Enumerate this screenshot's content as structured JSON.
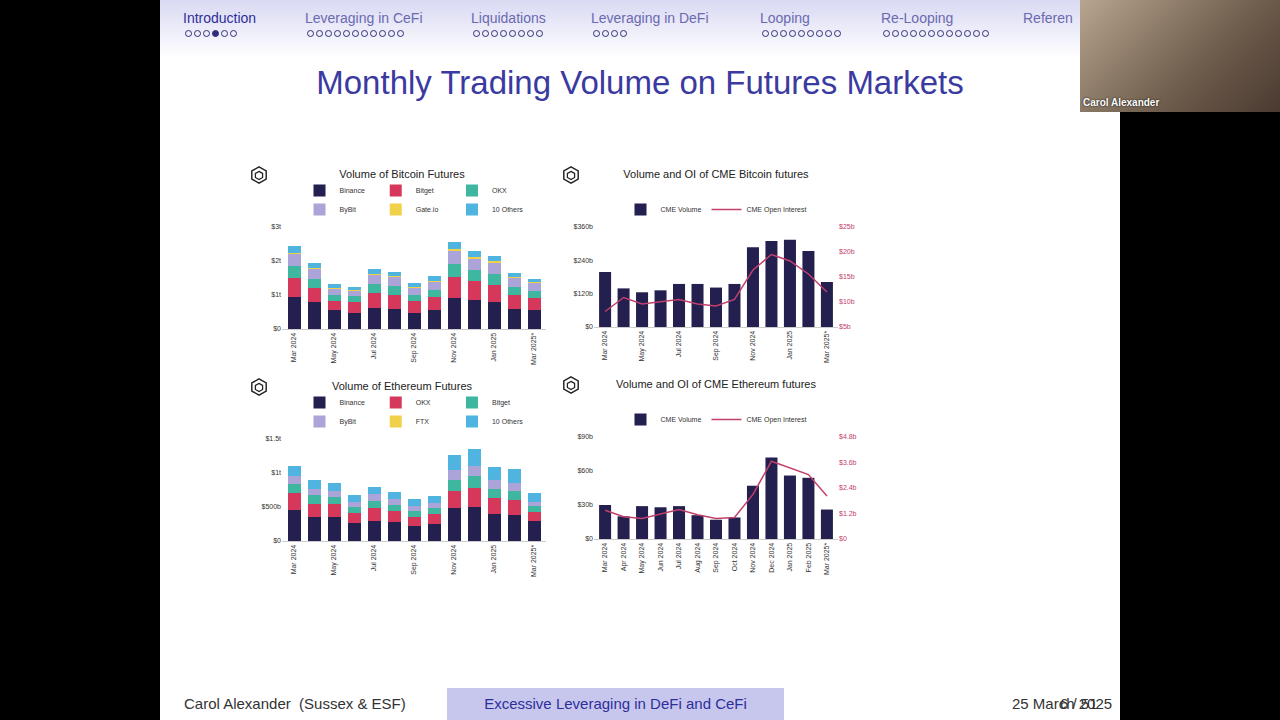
{
  "slide": {
    "title": "Monthly Trading Volume on Futures Markets",
    "nav": [
      {
        "label": "Introduction",
        "dots": 6,
        "current": 4
      },
      {
        "label": "Leveraging in CeFi",
        "dots": 11
      },
      {
        "label": "Liquidations",
        "dots": 8
      },
      {
        "label": "Leveraging in DeFi",
        "dots": 4
      },
      {
        "label": "Looping",
        "dots": 9
      },
      {
        "label": "Re-Looping",
        "dots": 12
      },
      {
        "label": "Referen",
        "dots": 0
      }
    ],
    "footer": {
      "author": "Carol Alexander  (Sussex & ESF)",
      "talk": "Excessive Leveraging in DeFi and CeFi",
      "date": "25 March 2025",
      "page": "6 / 51"
    },
    "webcam_label": "Carol Alexander"
  },
  "chart_data": [
    {
      "type": "bar",
      "title": "Volume of Bitcoin Futures",
      "stacked": true,
      "legend": "top",
      "grid": false,
      "categories": [
        "Mar 2024",
        null,
        "May 2024",
        null,
        "Jul 2024",
        null,
        "Sep 2024",
        null,
        "Nov 2024",
        null,
        "Jan 2025",
        null,
        "Mar 2025*"
      ],
      "series": [
        {
          "name": "Binance",
          "color": "#231f4f",
          "values": [
            0.95,
            0.78,
            0.55,
            0.48,
            0.62,
            0.58,
            0.48,
            0.55,
            0.92,
            0.85,
            0.78,
            0.6,
            0.55
          ]
        },
        {
          "name": "Bitget",
          "color": "#d6385c",
          "values": [
            0.55,
            0.42,
            0.28,
            0.3,
            0.45,
            0.42,
            0.33,
            0.38,
            0.62,
            0.55,
            0.52,
            0.4,
            0.35
          ]
        },
        {
          "name": "OKX",
          "color": "#3fb6a0",
          "values": [
            0.35,
            0.28,
            0.18,
            0.18,
            0.26,
            0.26,
            0.2,
            0.23,
            0.37,
            0.33,
            0.32,
            0.24,
            0.22
          ]
        },
        {
          "name": "ByBit",
          "color": "#aaa4d8",
          "values": [
            0.35,
            0.28,
            0.18,
            0.17,
            0.26,
            0.26,
            0.2,
            0.23,
            0.38,
            0.34,
            0.33,
            0.25,
            0.22
          ]
        },
        {
          "name": "Gate.io",
          "color": "#f2d14a",
          "values": [
            0.05,
            0.04,
            0.03,
            0.03,
            0.04,
            0.04,
            0.03,
            0.03,
            0.05,
            0.04,
            0.04,
            0.03,
            0.03
          ]
        },
        {
          "name": "10 Others",
          "color": "#4fb5e0",
          "values": [
            0.18,
            0.14,
            0.09,
            0.09,
            0.14,
            0.13,
            0.12,
            0.13,
            0.22,
            0.18,
            0.16,
            0.14,
            0.1
          ]
        }
      ],
      "ylim": [
        0,
        3
      ],
      "yticks": [
        {
          "value": 0,
          "label": "$0"
        },
        {
          "value": 1,
          "label": "$1t"
        },
        {
          "value": 2,
          "label": "$2t"
        },
        {
          "value": 3,
          "label": "$3t"
        }
      ]
    },
    {
      "type": "bar",
      "title": "Volume and OI of CME Bitcoin futures",
      "legend": "top",
      "grid": false,
      "categories": [
        "Mar 2024",
        null,
        "May 2024",
        null,
        "Jul 2024",
        null,
        "Sep 2024",
        null,
        "Nov 2024",
        null,
        "Jan 2025",
        null,
        "Mar 2025*"
      ],
      "series": [
        {
          "name": "CME Volume",
          "type": "bar",
          "color": "#231f4f",
          "values": [
            198,
            139,
            125,
            132,
            155,
            155,
            142,
            155,
            287,
            310,
            314,
            274,
            162
          ]
        },
        {
          "name": "CME Open Interest",
          "type": "line",
          "axis": "y2",
          "color": "#c2416b",
          "values": [
            8.1,
            10.9,
            9.6,
            10.1,
            10.5,
            9.6,
            9.2,
            10.5,
            16.4,
            19.5,
            18.2,
            15.6,
            12.0
          ]
        }
      ],
      "ylim": [
        0,
        360
      ],
      "yticks": [
        {
          "value": 0,
          "label": "$0"
        },
        {
          "value": 120,
          "label": "$120b"
        },
        {
          "value": 240,
          "label": "$240b"
        },
        {
          "value": 360,
          "label": "$360b"
        }
      ],
      "y2lim": [
        5,
        25
      ],
      "y2ticks": [
        {
          "value": 5,
          "label": "$5b"
        },
        {
          "value": 10,
          "label": "$10b"
        },
        {
          "value": 15,
          "label": "$15b"
        },
        {
          "value": 20,
          "label": "$20b"
        },
        {
          "value": 25,
          "label": "$25b"
        }
      ]
    },
    {
      "type": "bar",
      "title": "Volume of Ethereum Futures",
      "stacked": true,
      "legend": "top",
      "grid": false,
      "categories": [
        "Mar 2024",
        null,
        "May 2024",
        null,
        "Jul 2024",
        null,
        "Sep 2024",
        null,
        "Nov 2024",
        null,
        "Jan 2025",
        null,
        "Mar 2025*"
      ],
      "series": [
        {
          "name": "Binance",
          "color": "#231f4f",
          "values": [
            0.45,
            0.35,
            0.36,
            0.27,
            0.3,
            0.28,
            0.22,
            0.25,
            0.48,
            0.5,
            0.4,
            0.38,
            0.29
          ]
        },
        {
          "name": "OKX",
          "color": "#d6385c",
          "values": [
            0.25,
            0.2,
            0.18,
            0.14,
            0.18,
            0.16,
            0.14,
            0.14,
            0.26,
            0.28,
            0.23,
            0.23,
            0.14
          ]
        },
        {
          "name": "Bitget",
          "color": "#3fb6a0",
          "values": [
            0.14,
            0.12,
            0.11,
            0.09,
            0.11,
            0.09,
            0.08,
            0.09,
            0.16,
            0.17,
            0.14,
            0.13,
            0.08
          ]
        },
        {
          "name": "ByBit",
          "color": "#aaa4d8",
          "values": [
            0.12,
            0.1,
            0.09,
            0.08,
            0.1,
            0.09,
            0.08,
            0.08,
            0.15,
            0.16,
            0.13,
            0.12,
            0.07
          ]
        },
        {
          "name": "FTX",
          "color": "#f2d14a",
          "values": [
            0,
            0,
            0,
            0,
            0,
            0,
            0,
            0,
            0,
            0,
            0,
            0,
            0
          ]
        },
        {
          "name": "10 Others",
          "color": "#4fb5e0",
          "values": [
            0.15,
            0.12,
            0.11,
            0.09,
            0.11,
            0.1,
            0.1,
            0.1,
            0.22,
            0.25,
            0.19,
            0.2,
            0.12
          ]
        }
      ],
      "ylim": [
        0,
        1.5
      ],
      "yticks": [
        {
          "value": 0,
          "label": "$0"
        },
        {
          "value": 0.5,
          "label": "$500b"
        },
        {
          "value": 1,
          "label": "$1t"
        },
        {
          "value": 1.5,
          "label": "$1.5t"
        }
      ]
    },
    {
      "type": "bar",
      "title": "Volume and OI of CME Ethereum futures",
      "legend": "top",
      "grid": false,
      "categories": [
        "Mar 2024",
        "Apr 2024",
        "May 2024",
        "Jun 2024",
        "Jul 2024",
        "Aug 2024",
        "Sep 2024",
        "Oct 2024",
        "Nov 2024",
        "Dec 2024",
        "Jan 2025",
        "Feb 2025",
        "Mar 2025*"
      ],
      "series": [
        {
          "name": "CME Volume",
          "type": "bar",
          "color": "#231f4f",
          "values": [
            30,
            20,
            29,
            28,
            29,
            21,
            17,
            19,
            47,
            72,
            56,
            54,
            26
          ]
        },
        {
          "name": "CME Open Interest",
          "type": "line",
          "axis": "y2",
          "color": "#c2416b",
          "values": [
            1.35,
            1.05,
            0.97,
            1.18,
            1.39,
            1.14,
            0.97,
            1.01,
            2.1,
            3.66,
            3.33,
            3.03,
            2.02
          ]
        }
      ],
      "ylim": [
        0,
        90
      ],
      "yticks": [
        {
          "value": 0,
          "label": "$0"
        },
        {
          "value": 30,
          "label": "$30b"
        },
        {
          "value": 60,
          "label": "$60b"
        },
        {
          "value": 90,
          "label": "$90b"
        }
      ],
      "y2lim": [
        0,
        4.8
      ],
      "y2ticks": [
        {
          "value": 0,
          "label": "$0"
        },
        {
          "value": 1.2,
          "label": "$1.2b"
        },
        {
          "value": 2.4,
          "label": "$2.4b"
        },
        {
          "value": 3.6,
          "label": "$3.6b"
        },
        {
          "value": 4.8,
          "label": "$4.8b"
        }
      ]
    }
  ]
}
